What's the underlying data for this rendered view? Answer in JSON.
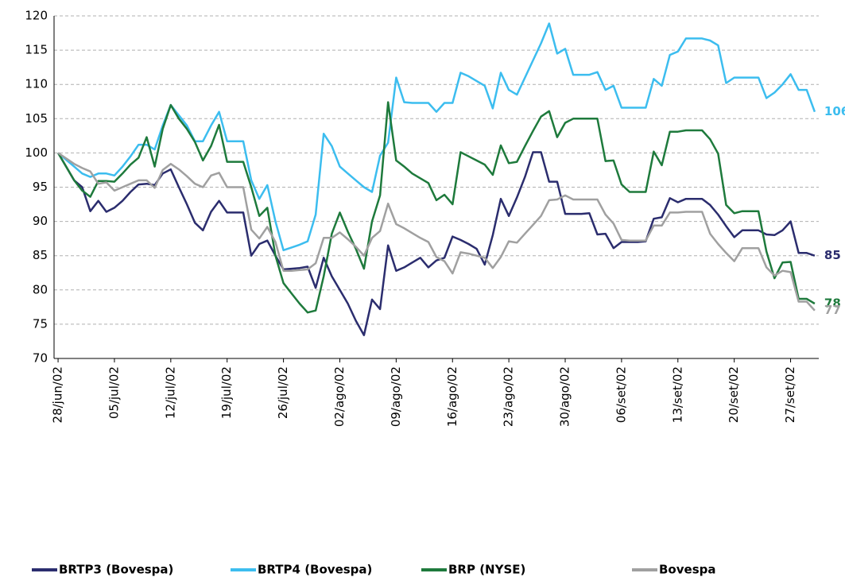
{
  "chart_data": {
    "type": "line",
    "categories": [
      "28/jun/02",
      null,
      null,
      null,
      null,
      null,
      null,
      "05/jul/02",
      null,
      null,
      null,
      null,
      null,
      null,
      "12/jul/02",
      null,
      null,
      null,
      null,
      null,
      null,
      "19/jul/02",
      null,
      null,
      null,
      null,
      null,
      null,
      "26/jul/02",
      null,
      null,
      null,
      null,
      null,
      null,
      "02/ago/02",
      null,
      null,
      null,
      null,
      null,
      null,
      "09/ago/02",
      null,
      null,
      null,
      null,
      null,
      null,
      "16/ago/02",
      null,
      null,
      null,
      null,
      null,
      null,
      "23/ago/02",
      null,
      null,
      null,
      null,
      null,
      null,
      "30/ago/02",
      null,
      null,
      null,
      null,
      null,
      null,
      "06/set/02",
      null,
      null,
      null,
      null,
      null,
      null,
      "13/set/02",
      null,
      null,
      null,
      null,
      null,
      null,
      "20/set/02",
      null,
      null,
      null,
      null,
      null,
      null,
      "27/set/02",
      null,
      null,
      null
    ],
    "series": [
      {
        "name": "BRTP3 (Bovespa)",
        "color": "#2b2d6e",
        "values": [
          100,
          98,
          96,
          95,
          91.5,
          93,
          91.4,
          92,
          93,
          94.3,
          95.4,
          95.5,
          95.3,
          97,
          97.6,
          95,
          92.5,
          89.8,
          88.7,
          91.4,
          93,
          91.3,
          91.3,
          91.3,
          85,
          86.7,
          87.2,
          85,
          83,
          83.1,
          83.2,
          83.4,
          80.3,
          84.7,
          82,
          80,
          78,
          75.5,
          73.4,
          78.6,
          77.2,
          86.5,
          82.8,
          83.3,
          84,
          84.7,
          83.3,
          84.3,
          84.7,
          87.8,
          87.3,
          86.7,
          86,
          83.7,
          88,
          93.3,
          90.8,
          93.5,
          96.5,
          100.1,
          100.1,
          95.8,
          95.8,
          91.1,
          91.1,
          91.1,
          91.2,
          88.1,
          88.2,
          86.1,
          87,
          87,
          87,
          87.1,
          90.4,
          90.6,
          93.4,
          92.8,
          93.3,
          93.3,
          93.3,
          92.4,
          91,
          89.3,
          87.7,
          88.7,
          88.7,
          88.7,
          88.1,
          88,
          88.7,
          90,
          85.4,
          85.4,
          85
        ]
      },
      {
        "name": "BRTP4 (Bovespa)",
        "color": "#3cbdef",
        "values": [
          100,
          99,
          98,
          97,
          96.5,
          97,
          97,
          96.7,
          98,
          99.5,
          101.2,
          101.2,
          100.5,
          104,
          107,
          105.5,
          104,
          101.7,
          101.7,
          104,
          106,
          101.7,
          101.7,
          101.7,
          96,
          93.3,
          95.3,
          90,
          85.8,
          86.2,
          86.6,
          87.1,
          91,
          102.8,
          101,
          98,
          97,
          96,
          95,
          94.3,
          99.6,
          101.5,
          111,
          107.4,
          107.3,
          107.3,
          107.3,
          106,
          107.3,
          107.3,
          111.7,
          111.2,
          110.5,
          109.8,
          106.5,
          111.7,
          109.2,
          108.5,
          111,
          113.5,
          116,
          118.9,
          114.5,
          115.2,
          111.4,
          111.4,
          111.4,
          111.8,
          109.2,
          109.8,
          106.6,
          106.6,
          106.6,
          106.6,
          110.8,
          109.8,
          114.3,
          114.8,
          116.7,
          116.7,
          116.7,
          116.4,
          115.7,
          110.2,
          111,
          111,
          111,
          111,
          108,
          108.8,
          110,
          111.5,
          109.2,
          109.2,
          106
        ]
      },
      {
        "name": "BRP (NYSE)",
        "color": "#1e7a3c",
        "values": [
          100,
          98,
          96,
          94.5,
          93.6,
          95.9,
          95.9,
          95.8,
          97,
          98.3,
          99.3,
          102.3,
          98,
          103.5,
          107,
          105,
          103.5,
          101.6,
          98.9,
          101,
          104.1,
          98.7,
          98.7,
          98.7,
          95,
          90.8,
          92,
          85,
          81,
          79.5,
          78,
          76.7,
          77,
          82,
          88.2,
          91.3,
          88.5,
          86,
          83.1,
          90,
          93.8,
          107.4,
          98.9,
          98,
          97,
          96.3,
          95.6,
          93.1,
          93.9,
          92.5,
          100.1,
          99.5,
          98.9,
          98.3,
          96.8,
          101.1,
          98.5,
          98.7,
          101,
          103.2,
          105.3,
          106.1,
          102.3,
          104.4,
          105,
          105,
          105,
          105,
          98.8,
          98.9,
          95.4,
          94.3,
          94.3,
          94.3,
          100.2,
          98.2,
          103.1,
          103.1,
          103.3,
          103.3,
          103.3,
          102,
          99.9,
          92.4,
          91.2,
          91.5,
          91.5,
          91.5,
          85.6,
          81.7,
          84,
          84.1,
          78.7,
          78.7,
          78
        ]
      },
      {
        "name": "Bovespa",
        "color": "#a0a0a0",
        "values": [
          100,
          99.2,
          98.4,
          97.8,
          97.3,
          95.5,
          95.7,
          94.5,
          95,
          95.5,
          96,
          96,
          94.9,
          97.5,
          98.4,
          97.6,
          96.6,
          95.5,
          95,
          96.7,
          97.1,
          95,
          95,
          95,
          88.8,
          87.5,
          89.2,
          87,
          82.8,
          82.8,
          82.9,
          83,
          83.9,
          87.6,
          87.6,
          88.4,
          87.4,
          86.3,
          85,
          87.6,
          88.6,
          92.6,
          89.6,
          89,
          88.3,
          87.6,
          87,
          84.8,
          84.2,
          82.4,
          85.5,
          85.3,
          85,
          84.7,
          83.2,
          84.8,
          87.1,
          86.9,
          88.2,
          89.5,
          90.8,
          93.1,
          93.2,
          93.8,
          93.2,
          93.2,
          93.2,
          93.2,
          91,
          89.7,
          87.3,
          87.2,
          87.2,
          87.2,
          89.4,
          89.4,
          91.3,
          91.3,
          91.4,
          91.4,
          91.4,
          88.2,
          86.7,
          85.4,
          84.2,
          86.1,
          86.1,
          86.1,
          83.3,
          82.1,
          82.8,
          82.6,
          78.3,
          78.3,
          77
        ]
      }
    ],
    "ylim": [
      70,
      120
    ],
    "yticks": [
      70,
      75,
      80,
      85,
      90,
      95,
      100,
      105,
      110,
      115,
      120
    ],
    "grid": true,
    "legend": "bottom"
  }
}
